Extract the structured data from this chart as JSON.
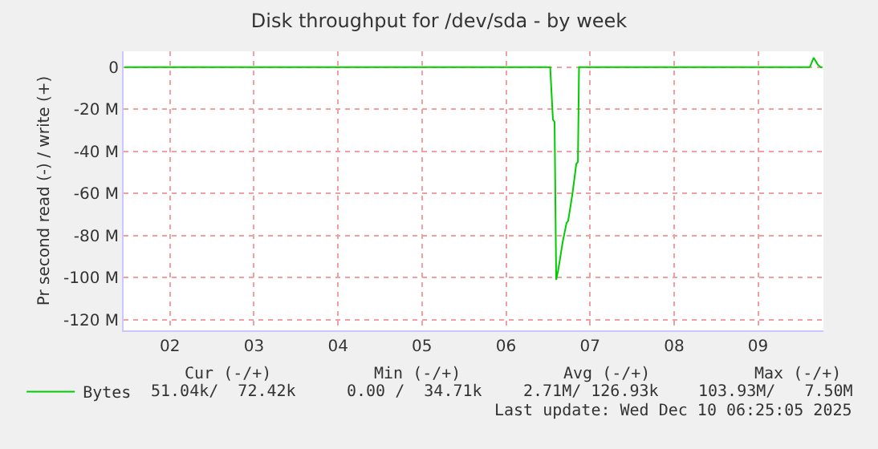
{
  "chart_data": {
    "type": "line",
    "title": "Disk throughput for /dev/sda - by week",
    "ylabel": "Pr second read (-) / write (+)",
    "xlim": [
      "2025-12-01T22:45",
      "2025-12-10T06:40"
    ],
    "xticks": [
      {
        "value": "2025-12-02T12:00",
        "label": "02"
      },
      {
        "value": "2025-12-03T12:00",
        "label": "03"
      },
      {
        "value": "2025-12-04T12:00",
        "label": "04"
      },
      {
        "value": "2025-12-05T12:00",
        "label": "05"
      },
      {
        "value": "2025-12-06T12:00",
        "label": "06"
      },
      {
        "value": "2025-12-07T12:00",
        "label": "07"
      },
      {
        "value": "2025-12-08T12:00",
        "label": "08"
      },
      {
        "value": "2025-12-09T12:00",
        "label": "09"
      }
    ],
    "ylim": [
      -125000000,
      7500000
    ],
    "yticks": [
      {
        "value": 0,
        "label": "0"
      },
      {
        "value": -20000000,
        "label": "-20 M"
      },
      {
        "value": -40000000,
        "label": "-40 M"
      },
      {
        "value": -60000000,
        "label": "-60 M"
      },
      {
        "value": -80000000,
        "label": "-80 M"
      },
      {
        "value": -100000000,
        "label": "-100 M"
      },
      {
        "value": -120000000,
        "label": "-120 M"
      }
    ],
    "grid": true,
    "legend": "bottom left",
    "marker": "none",
    "line_style": "solid",
    "series": [
      {
        "name": "Bytes",
        "color": "#00cc00",
        "x": [
          "2025-12-01T23:00",
          "2025-12-07T00:37",
          "2025-12-07T01:24",
          "2025-12-07T01:52",
          "2025-12-07T02:20",
          "2025-12-07T02:57",
          "2025-12-07T04:11",
          "2025-12-07T05:17",
          "2025-12-07T05:45",
          "2025-12-07T06:59",
          "2025-12-07T08:04",
          "2025-12-07T08:32",
          "2025-12-07T08:51",
          "2025-12-10T02:48"
        ],
        "values": [
          0,
          0,
          -25000000,
          -26000000,
          -101000000,
          -96000000,
          -83000000,
          -74000000,
          -73000000,
          -60000000,
          -46000000,
          -45000000,
          0,
          0
        ]
      },
      {
        "color": "#00cc00",
        "x": [
          "2025-12-10T02:48",
          "2025-12-10T03:53",
          "2025-12-10T05:07",
          "2025-12-10T05:53",
          "2025-12-10T06:25"
        ],
        "values": [
          0,
          4500000,
          1000000,
          0,
          0
        ]
      }
    ],
    "annotations": [
      "Cur (-/+)",
      "Min (-/+)",
      "Avg (-/+)",
      "Max (-/+)",
      "51.04k/  72.42k",
      "0.00 /  34.71k",
      "2.71M/ 126.93k",
      "103.93M/   7.50M",
      "Last update: Wed Dec 10 06:25:05 2025"
    ]
  }
}
